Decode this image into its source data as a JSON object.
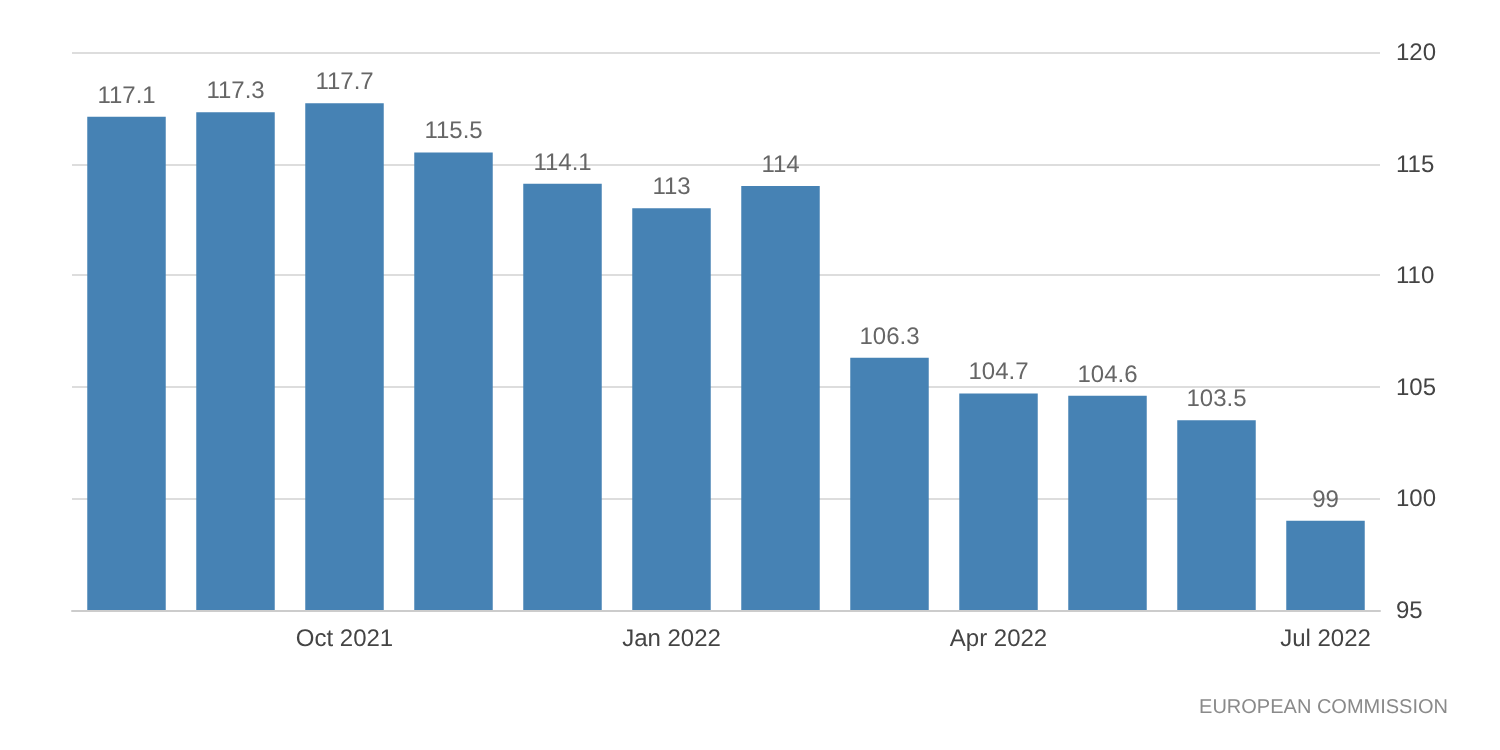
{
  "chart_data": {
    "type": "bar",
    "categories": [
      null,
      null,
      "Oct 2021",
      null,
      null,
      "Jan 2022",
      null,
      null,
      "Apr 2022",
      null,
      null,
      "Jul 2022"
    ],
    "values": [
      117.1,
      117.3,
      117.7,
      115.5,
      114.1,
      113,
      114,
      106.3,
      104.7,
      104.6,
      103.5,
      99
    ],
    "color": "#4682b4",
    "ylim": [
      95,
      120
    ],
    "yticks": [
      95,
      100,
      105,
      110,
      115,
      120
    ],
    "grid": "y",
    "data_labels": true,
    "annotations": [
      "EUROPEAN COMMISSION"
    ]
  }
}
